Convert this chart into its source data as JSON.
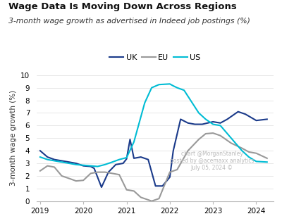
{
  "title": "Wage Data Is Moving Down Across Regions",
  "subtitle": "3-month wage growth as advertised in Indeed job postings (%)",
  "ylabel": "3-month wage growth (%)",
  "background_color": "#ffffff",
  "watermark_line1": "chart @MorganStanley",
  "watermark_line2": "posted by @acemaxx analytics",
  "watermark_line3": "July 05, 2024 ©",
  "ylim": [
    0,
    10
  ],
  "yticks": [
    0,
    1,
    2,
    3,
    4,
    5,
    6,
    7,
    8,
    9,
    10
  ],
  "uk_color": "#1a3a8a",
  "eu_color": "#999999",
  "us_color": "#00bcd4",
  "uk_x": [
    2019.0,
    2019.17,
    2019.33,
    2019.5,
    2019.67,
    2019.83,
    2020.0,
    2020.17,
    2020.25,
    2020.42,
    2020.58,
    2020.75,
    2020.92,
    2021.0,
    2021.08,
    2021.17,
    2021.33,
    2021.5,
    2021.67,
    2021.83,
    2022.0,
    2022.08,
    2022.25,
    2022.42,
    2022.58,
    2022.75,
    2023.0,
    2023.17,
    2023.33,
    2023.58,
    2023.75,
    2024.0,
    2024.25
  ],
  "uk_y": [
    4.0,
    3.5,
    3.3,
    3.2,
    3.1,
    3.0,
    2.8,
    2.75,
    2.6,
    1.1,
    2.3,
    2.9,
    3.0,
    3.35,
    4.9,
    3.4,
    3.5,
    3.3,
    1.2,
    1.2,
    1.9,
    4.0,
    6.5,
    6.2,
    6.1,
    6.1,
    6.3,
    6.2,
    6.5,
    7.1,
    6.9,
    6.4,
    6.5
  ],
  "eu_x": [
    2019.0,
    2019.17,
    2019.33,
    2019.5,
    2019.67,
    2019.83,
    2020.0,
    2020.17,
    2020.33,
    2020.5,
    2020.67,
    2020.83,
    2021.0,
    2021.17,
    2021.33,
    2021.5,
    2021.58,
    2021.75,
    2022.0,
    2022.17,
    2022.42,
    2022.67,
    2022.83,
    2023.0,
    2023.17,
    2023.42,
    2023.67,
    2023.83,
    2024.0,
    2024.25
  ],
  "eu_y": [
    2.4,
    2.8,
    2.7,
    2.0,
    1.8,
    1.6,
    1.65,
    2.2,
    2.3,
    2.3,
    2.2,
    2.1,
    0.9,
    0.8,
    0.3,
    0.1,
    0.0,
    0.2,
    2.3,
    2.5,
    4.0,
    4.9,
    5.35,
    5.4,
    5.2,
    4.6,
    4.2,
    3.9,
    3.8,
    3.4
  ],
  "us_x": [
    2019.0,
    2019.17,
    2019.33,
    2019.5,
    2019.67,
    2019.83,
    2020.0,
    2020.17,
    2020.33,
    2020.5,
    2020.67,
    2020.83,
    2021.0,
    2021.17,
    2021.42,
    2021.58,
    2021.75,
    2022.0,
    2022.08,
    2022.17,
    2022.33,
    2022.67,
    2022.83,
    2023.0,
    2023.17,
    2023.42,
    2023.67,
    2023.83,
    2024.0,
    2024.25
  ],
  "us_y": [
    3.5,
    3.3,
    3.2,
    3.1,
    3.0,
    2.9,
    2.85,
    2.8,
    2.75,
    2.9,
    3.1,
    3.3,
    3.45,
    4.7,
    7.8,
    9.0,
    9.25,
    9.3,
    9.15,
    9.0,
    8.8,
    7.0,
    6.5,
    6.1,
    6.0,
    5.0,
    4.0,
    3.5,
    3.15,
    3.1
  ]
}
